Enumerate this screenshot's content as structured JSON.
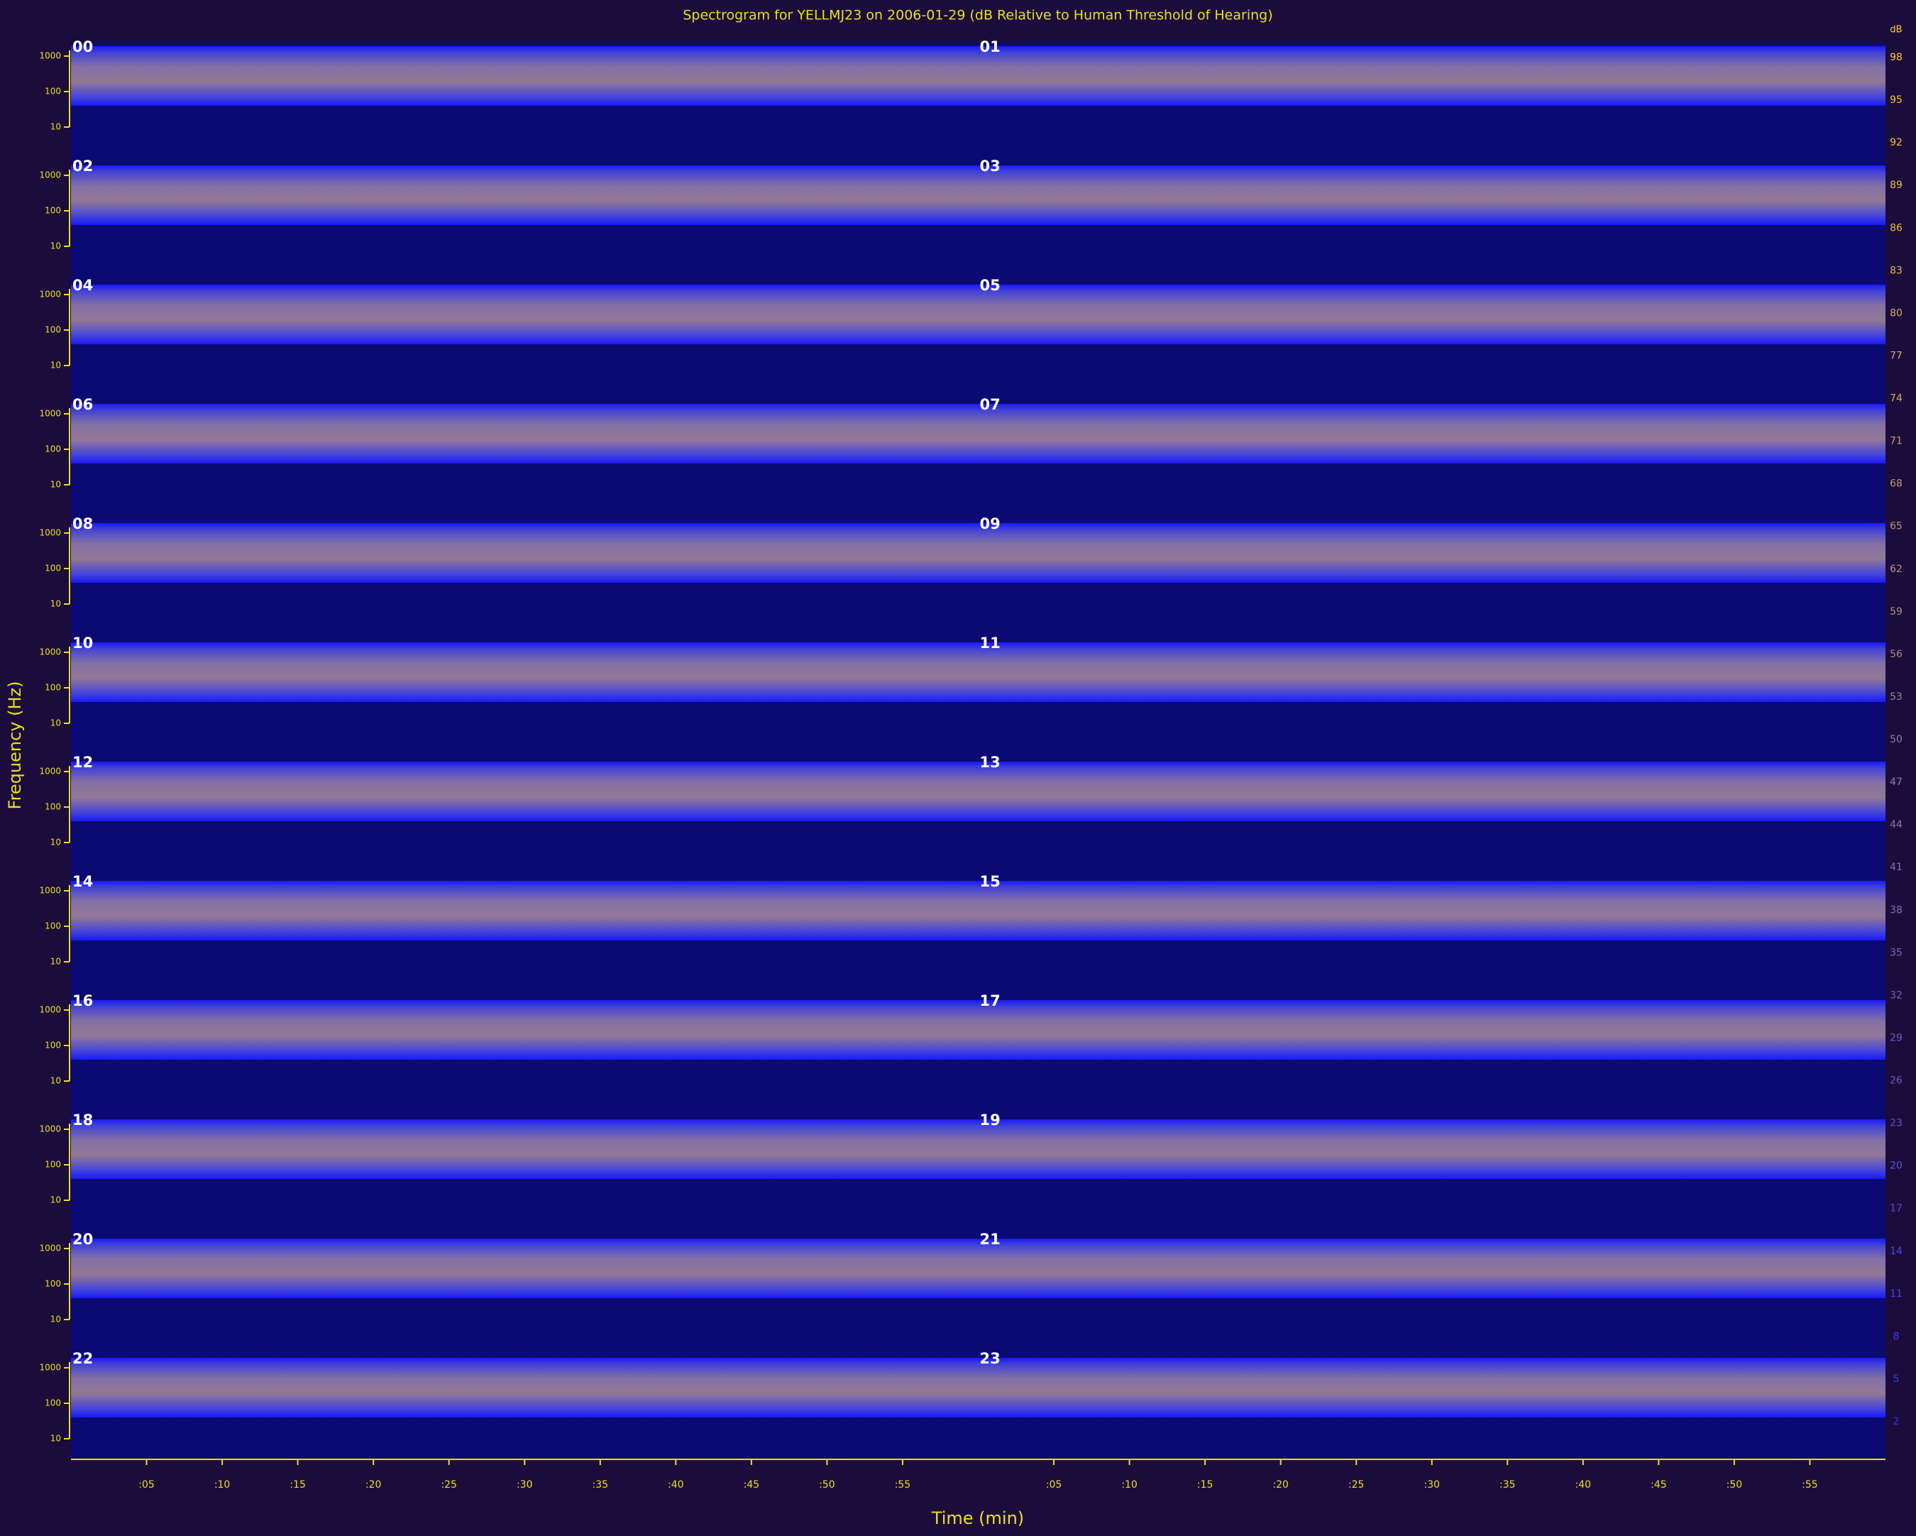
{
  "chart_data": {
    "type": "spectrogram",
    "title": "Spectrogram for YELLMJ23 on 2006-01-29 (dB Relative to Human Threshold of Hearing)",
    "xlabel": "Time (min)",
    "ylabel": "Frequency (Hz)",
    "panels": [
      "00",
      "01",
      "02",
      "03",
      "04",
      "05",
      "06",
      "07",
      "08",
      "09",
      "10",
      "11",
      "12",
      "13",
      "14",
      "15",
      "16",
      "17",
      "18",
      "19",
      "20",
      "21",
      "22",
      "23"
    ],
    "log_y": true,
    "ylim": [
      10,
      1000
    ],
    "yticks": [
      1000,
      100,
      10
    ],
    "xlim": [
      0,
      60
    ],
    "xticks": [
      {
        "value": 5,
        "label": ":05"
      },
      {
        "value": 10,
        "label": ":10"
      },
      {
        "value": 15,
        "label": ":15"
      },
      {
        "value": 20,
        "label": ":20"
      },
      {
        "value": 25,
        "label": ":25"
      },
      {
        "value": 30,
        "label": ":30"
      },
      {
        "value": 35,
        "label": ":35"
      },
      {
        "value": 40,
        "label": ":40"
      },
      {
        "value": 45,
        "label": ":45"
      },
      {
        "value": 50,
        "label": ":50"
      },
      {
        "value": 55,
        "label": ":55"
      }
    ],
    "colorbar": {
      "label": "dB",
      "lim": [
        2,
        98
      ],
      "ticks": [
        98,
        95,
        92,
        89,
        86,
        83,
        80,
        77,
        74,
        71,
        68,
        65,
        62,
        59,
        56,
        53,
        50,
        47,
        44,
        41,
        38,
        35,
        32,
        29,
        26,
        23,
        20,
        17,
        14,
        11,
        8,
        5,
        2
      ],
      "high_color": "#ffcc33",
      "low_color": "#3333ff"
    },
    "axis_color": "#e8e020",
    "background": "#1c0c3c",
    "plot_background": "#0b0a72"
  }
}
